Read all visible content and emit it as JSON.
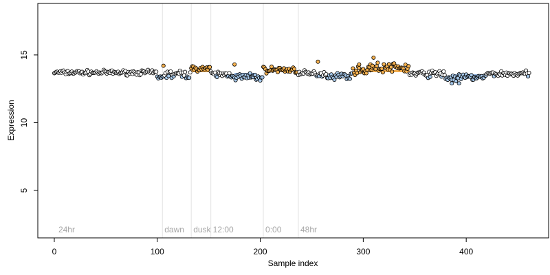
{
  "chart_data": {
    "type": "scatter",
    "title": "",
    "xlabel": "Sample index",
    "ylabel": "Expression",
    "xlim": [
      -16,
      480
    ],
    "ylim": [
      1.5,
      18.8
    ],
    "x_ticks": [
      0,
      100,
      200,
      300,
      400
    ],
    "y_ticks": [
      5,
      10,
      15
    ],
    "grid": false,
    "legend": "none",
    "colors": {
      "below_baseline": "#a6c8ea",
      "above_baseline": "#f5b14f",
      "neutral": "#ffffff",
      "baseline_segment_blue": "#7ea6d8",
      "baseline_segment_orange": "#f0a23a",
      "phase_line": "#e3e3e3",
      "phase_text": "#a6a6a6",
      "marker_edge": "#000000"
    },
    "phase_markers": [
      {
        "x": 2,
        "label": "24hr",
        "line": false
      },
      {
        "x": 105,
        "label": "dawn",
        "line": true
      },
      {
        "x": 133,
        "label": "dusk",
        "line": true
      },
      {
        "x": 152,
        "label": "12:00",
        "line": true
      },
      {
        "x": 203,
        "label": "0:00",
        "line": true
      },
      {
        "x": 237,
        "label": "48hr",
        "line": true
      }
    ],
    "baseline": 13.7,
    "segments": [
      {
        "x_start": 0,
        "x_end": 100,
        "y": 13.7,
        "group": "neutral",
        "noise": 0.14
      },
      {
        "x_start": 100,
        "x_end": 105,
        "y": 13.35,
        "group": "below",
        "noise": 0.14
      },
      {
        "x_start": 105,
        "x_end": 133,
        "y": 13.55,
        "group": "mixed",
        "noise": 0.28
      },
      {
        "x_start": 133,
        "x_end": 152,
        "y": 14.0,
        "group": "above",
        "noise": 0.16
      },
      {
        "x_start": 152,
        "x_end": 175,
        "y": 13.55,
        "group": "mixed",
        "noise": 0.22
      },
      {
        "x_start": 175,
        "x_end": 203,
        "y": 13.35,
        "group": "below",
        "noise": 0.25
      },
      {
        "x_start": 203,
        "x_end": 237,
        "y": 13.9,
        "group": "above",
        "noise": 0.2
      },
      {
        "x_start": 237,
        "x_end": 265,
        "y": 13.6,
        "group": "mixed",
        "noise": 0.2
      },
      {
        "x_start": 265,
        "x_end": 290,
        "y": 13.45,
        "group": "below",
        "noise": 0.22
      },
      {
        "x_start": 290,
        "x_end": 305,
        "y": 13.85,
        "group": "above",
        "noise": 0.22
      },
      {
        "x_start": 305,
        "x_end": 345,
        "y": 14.05,
        "group": "above",
        "noise": 0.28
      },
      {
        "x_start": 345,
        "x_end": 380,
        "y": 13.6,
        "group": "mixed",
        "noise": 0.22
      },
      {
        "x_start": 380,
        "x_end": 395,
        "y": 13.3,
        "group": "below",
        "noise": 0.25
      },
      {
        "x_start": 395,
        "x_end": 420,
        "y": 13.35,
        "group": "below",
        "noise": 0.2
      },
      {
        "x_start": 420,
        "x_end": 462,
        "y": 13.6,
        "group": "mixed",
        "noise": 0.18
      }
    ],
    "baseline_segments": [
      {
        "x_start": 100,
        "x_end": 105,
        "y": 13.4,
        "color": "blue"
      },
      {
        "x_start": 133,
        "x_end": 152,
        "y": 13.8,
        "color": "orange"
      },
      {
        "x_start": 175,
        "x_end": 195,
        "y": 13.6,
        "color": "blue"
      },
      {
        "x_start": 305,
        "x_end": 345,
        "y": 13.8,
        "color": "orange"
      },
      {
        "x_start": 385,
        "x_end": 420,
        "y": 13.5,
        "color": "blue"
      }
    ],
    "outliers": [
      {
        "x": 106,
        "y": 14.2
      },
      {
        "x": 256,
        "y": 14.5
      },
      {
        "x": 307,
        "y": 14.3
      },
      {
        "x": 309,
        "y": 14.2
      },
      {
        "x": 310,
        "y": 14.8
      },
      {
        "x": 296,
        "y": 14.3
      },
      {
        "x": 386,
        "y": 12.9
      },
      {
        "x": 393,
        "y": 12.9
      },
      {
        "x": 175,
        "y": 14.3
      }
    ]
  }
}
